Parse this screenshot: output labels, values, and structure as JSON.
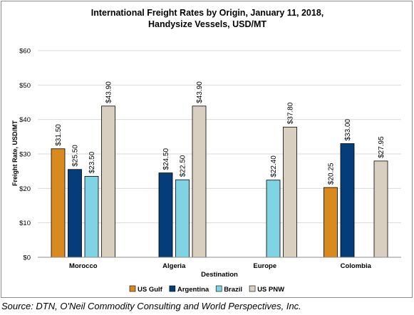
{
  "chart_data": {
    "type": "bar",
    "title": "International Freight Rates by Origin, January 11, 2018,",
    "subtitle": "Handysize Vessels, USD/MT",
    "xlabel": "Destination",
    "ylabel": "Freight Rate, USD/MT",
    "categories": [
      "Morocco",
      "Algeria",
      "Europe",
      "Colombia"
    ],
    "ylim": [
      0,
      60
    ],
    "yticks": [
      "$0",
      "$10",
      "$20",
      "$30",
      "$40",
      "$50",
      "$60"
    ],
    "grid": true,
    "legend_position": "bottom",
    "series": [
      {
        "name": "US Gulf",
        "color": "#D88A1E",
        "values": [
          31.5,
          null,
          null,
          20.25
        ],
        "labels": [
          "$31.50",
          null,
          null,
          "$20.25"
        ]
      },
      {
        "name": "Argentina",
        "color": "#053C7A",
        "values": [
          25.5,
          24.5,
          null,
          33.0
        ],
        "labels": [
          "$25.50",
          "$24.50",
          null,
          "$33.00"
        ]
      },
      {
        "name": "Brazil",
        "color": "#7FD3E2",
        "values": [
          23.5,
          22.5,
          22.4,
          null
        ],
        "labels": [
          "$23.50",
          "$22.50",
          "$22.40",
          null
        ]
      },
      {
        "name": "US PNW",
        "color": "#D8CFC0",
        "values": [
          43.9,
          43.9,
          37.8,
          27.95
        ],
        "labels": [
          "$43.90",
          "$43.90",
          "$37.80",
          "$27.95"
        ]
      }
    ]
  },
  "source": "Source: DTN, O'Neil Commodity Consulting and World Perspectives, Inc."
}
